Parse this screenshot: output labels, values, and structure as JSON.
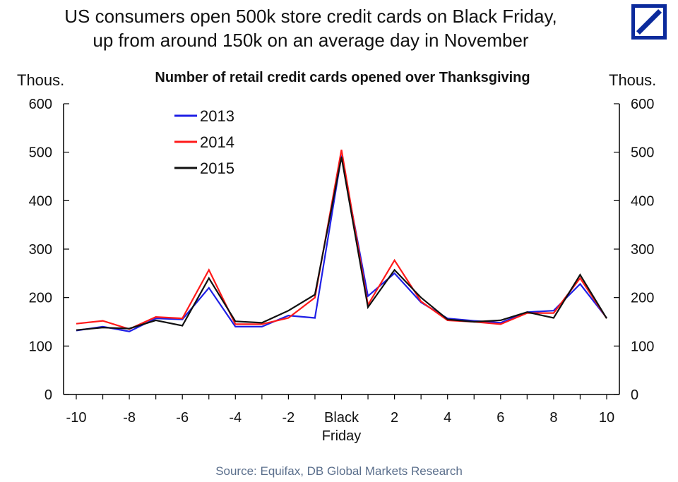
{
  "header": {
    "headline_line1": "US consumers open 500k store credit cards on Black Friday,",
    "headline_line2": "up from around 150k on an average day in November",
    "logo_icon": "deutsche-bank-logo-icon",
    "logo_color": "#0b2a9c"
  },
  "chart_data": {
    "type": "line",
    "title": "Number of retail credit cards opened over Thanksgiving",
    "ylabel_left": "Thous.",
    "ylabel_right": "Thous.",
    "ylim": [
      0,
      600
    ],
    "yticks": [
      0,
      100,
      200,
      300,
      400,
      500,
      600
    ],
    "xlim": [
      -10,
      10
    ],
    "x": [
      -10,
      -9,
      -8,
      -7,
      -6,
      -5,
      -4,
      -3,
      -2,
      -1,
      0,
      1,
      2,
      3,
      4,
      5,
      6,
      7,
      8,
      9,
      10
    ],
    "xticks": [
      {
        "value": -10,
        "label": "-10"
      },
      {
        "value": -8,
        "label": "-8"
      },
      {
        "value": -6,
        "label": "-6"
      },
      {
        "value": -4,
        "label": "-4"
      },
      {
        "value": -2,
        "label": "-2"
      },
      {
        "value": 0,
        "label": "Black",
        "label2": "Friday"
      },
      {
        "value": 2,
        "label": "2"
      },
      {
        "value": 4,
        "label": "4"
      },
      {
        "value": 6,
        "label": "6"
      },
      {
        "value": 8,
        "label": "8"
      },
      {
        "value": 10,
        "label": "10"
      }
    ],
    "legend_position": "top-left",
    "grid": false,
    "series": [
      {
        "name": "2013",
        "color": "#1f1fe6",
        "values": [
          132,
          140,
          130,
          157,
          155,
          220,
          140,
          140,
          163,
          158,
          493,
          203,
          250,
          190,
          157,
          152,
          148,
          170,
          173,
          228,
          158
        ]
      },
      {
        "name": "2014",
        "color": "#ff1a1a",
        "values": [
          146,
          152,
          135,
          160,
          157,
          257,
          145,
          145,
          158,
          200,
          505,
          185,
          277,
          192,
          153,
          150,
          145,
          168,
          168,
          240,
          157
        ]
      },
      {
        "name": "2015",
        "color": "#111111",
        "values": [
          133,
          138,
          136,
          153,
          142,
          240,
          151,
          148,
          173,
          206,
          490,
          180,
          257,
          200,
          155,
          150,
          153,
          170,
          158,
          247,
          157
        ]
      }
    ]
  },
  "footer": {
    "source": "Source: Equifax, DB Global Markets Research"
  }
}
